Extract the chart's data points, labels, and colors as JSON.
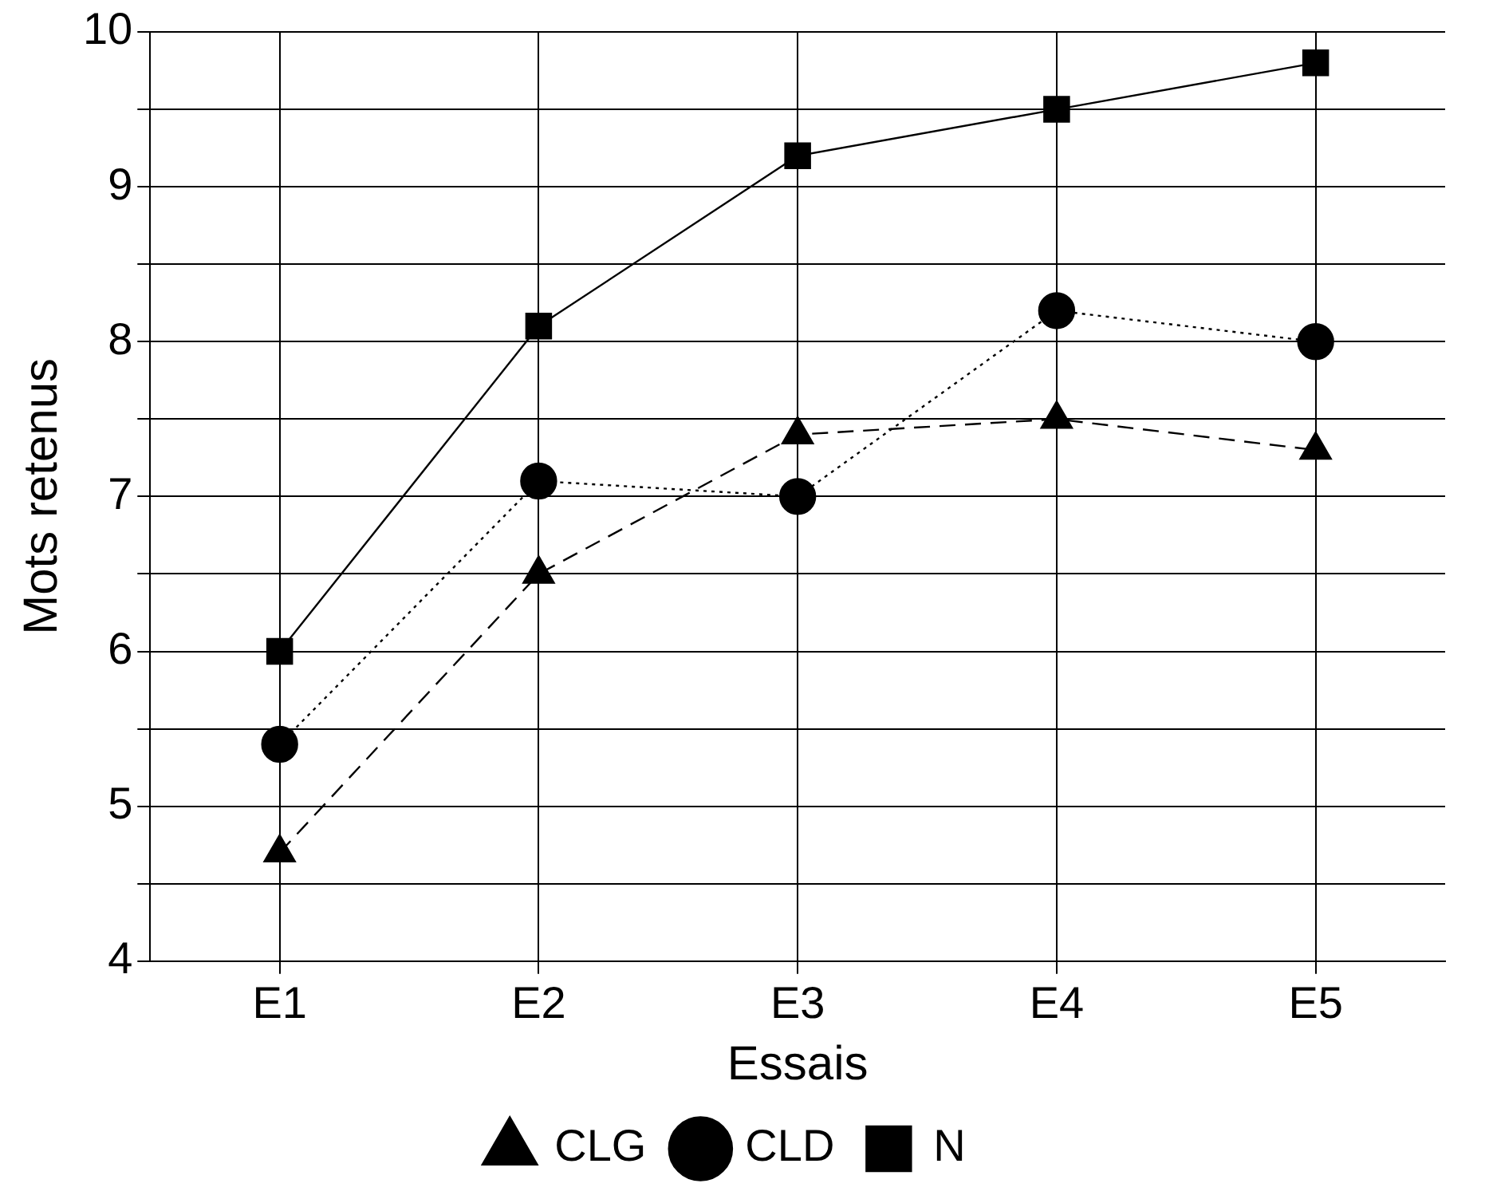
{
  "chart_data": {
    "type": "line",
    "xlabel": "Essais",
    "ylabel": "Mots retenus",
    "categories": [
      "E1",
      "E2",
      "E3",
      "E4",
      "E5"
    ],
    "series": [
      {
        "name": "CLG",
        "color": "#000000",
        "values": [
          4.7,
          6.5,
          7.4,
          7.5,
          7.3
        ],
        "marker": "triangle",
        "line_style": "dashed"
      },
      {
        "name": "CLD",
        "color": "#000000",
        "values": [
          5.4,
          7.1,
          7.0,
          8.2,
          8.0
        ],
        "marker": "circle",
        "line_style": "dotted"
      },
      {
        "name": "N",
        "color": "#000000",
        "values": [
          6.0,
          8.1,
          9.2,
          9.5,
          9.8
        ],
        "marker": "square",
        "line_style": "solid"
      }
    ],
    "ylim": [
      4,
      10
    ],
    "yticks": [
      4,
      {
        "value": 4.5,
        "label": null
      },
      5,
      {
        "value": 5.5,
        "label": null
      },
      6,
      {
        "value": 6.5,
        "label": null
      },
      7,
      {
        "value": 7.5,
        "label": null
      },
      8,
      {
        "value": 8.5,
        "label": null
      },
      9,
      {
        "value": 9.5,
        "label": null
      },
      10
    ],
    "grid": true,
    "legend": "bottom"
  }
}
